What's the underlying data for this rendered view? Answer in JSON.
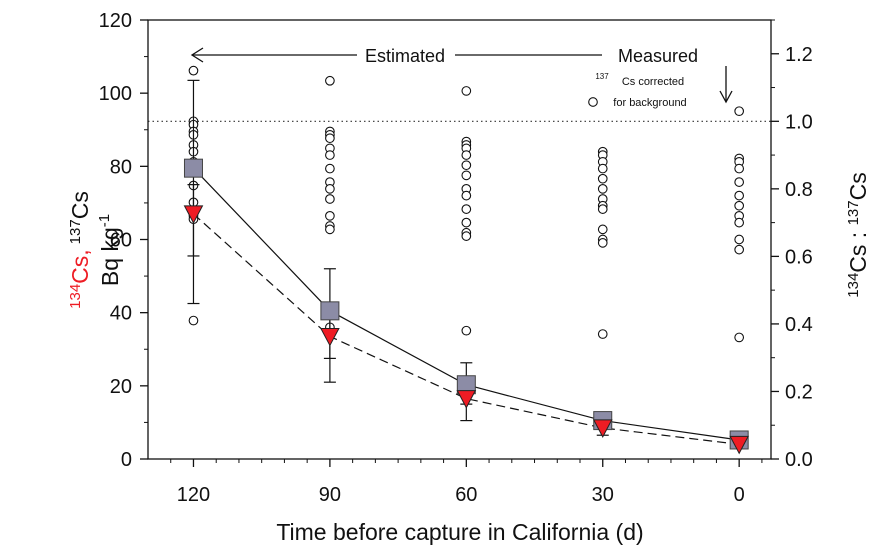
{
  "chart_data": {
    "type": "scatter",
    "xlabel": "Time before capture in California (d)",
    "ylabel_left": {
      "cs134": "134",
      "cs134_label": "Cs,",
      "cs137": "137",
      "cs137_label": "Cs",
      "unit": "Bq kg",
      "unit_exp": "-1"
    },
    "ylabel_right": {
      "cs134": "134",
      "cs134_label": "Cs : ",
      "cs137": "137",
      "cs137_label": "Cs"
    },
    "xlim": [
      130,
      -7
    ],
    "ylim_left": [
      0,
      120
    ],
    "ylim_right": [
      0,
      1.3
    ],
    "x_ticks": [
      120,
      90,
      60,
      30,
      0
    ],
    "y_ticks_left": [
      0,
      20,
      40,
      60,
      80,
      100,
      120
    ],
    "y_ticks_right": [
      0.0,
      0.2,
      0.4,
      0.6,
      0.8,
      1.0,
      1.2
    ],
    "y_ticks_right_labels": [
      "0.0",
      "0.2",
      "0.4",
      "0.6",
      "0.8",
      "1.0",
      "1.2"
    ],
    "reference_line": {
      "axis": "right",
      "value": 1.0,
      "style": "dotted"
    },
    "annotations": {
      "estimated": "Estimated",
      "measured": "Measured",
      "bg_sup": "137",
      "bg_line1": "Cs corrected",
      "bg_line2": "for background"
    },
    "series": [
      {
        "label": "137Cs",
        "axis": "left",
        "marker": "square",
        "line": "solid",
        "color": "#8c8ca6",
        "x": [
          120,
          90,
          60,
          30,
          0
        ],
        "y": [
          79.5,
          40.5,
          20.3,
          10.5,
          5.2
        ],
        "err_low": [
          42.5,
          21.0,
          15.0,
          8.5,
          4.0
        ],
        "err_high": [
          103.5,
          52.0,
          26.3,
          12.8,
          6.5
        ]
      },
      {
        "label": "134Cs",
        "axis": "left",
        "marker": "triangle-down",
        "line": "dashed",
        "color": "#ee1c24",
        "x": [
          120,
          90,
          60,
          30,
          0
        ],
        "y": [
          67.0,
          33.5,
          16.5,
          8.5,
          4.0
        ],
        "err_low": [
          55.5,
          27.5,
          10.5,
          6.5,
          3.0
        ],
        "err_high": [
          75.0,
          38.5,
          19.0,
          9.5,
          4.5
        ]
      },
      {
        "label": "134Cs : 137Cs",
        "axis": "right",
        "marker": "open-circle",
        "line": "none",
        "color": "#111111",
        "points": [
          {
            "x": 120,
            "y": [
              1.15,
              1.0,
              0.99,
              0.97,
              0.96,
              0.93,
              0.91,
              0.88,
              0.85,
              0.81,
              0.76,
              0.72,
              0.71,
              0.41
            ]
          },
          {
            "x": 90,
            "y": [
              1.12,
              0.97,
              0.96,
              0.95,
              0.92,
              0.9,
              0.86,
              0.82,
              0.8,
              0.77,
              0.72,
              0.69,
              0.68,
              0.39
            ]
          },
          {
            "x": 60,
            "y": [
              1.09,
              0.94,
              0.93,
              0.92,
              0.9,
              0.87,
              0.84,
              0.8,
              0.78,
              0.74,
              0.7,
              0.67,
              0.66,
              0.38
            ]
          },
          {
            "x": 30,
            "y": [
              0.91,
              0.9,
              0.88,
              0.86,
              0.83,
              0.8,
              0.77,
              0.75,
              0.74,
              0.68,
              0.65,
              0.64,
              0.37
            ]
          },
          {
            "x": 0,
            "y": [
              1.03,
              0.89,
              0.88,
              0.86,
              0.82,
              0.78,
              0.75,
              0.72,
              0.7,
              0.65,
              0.62,
              0.36
            ]
          }
        ]
      }
    ]
  }
}
